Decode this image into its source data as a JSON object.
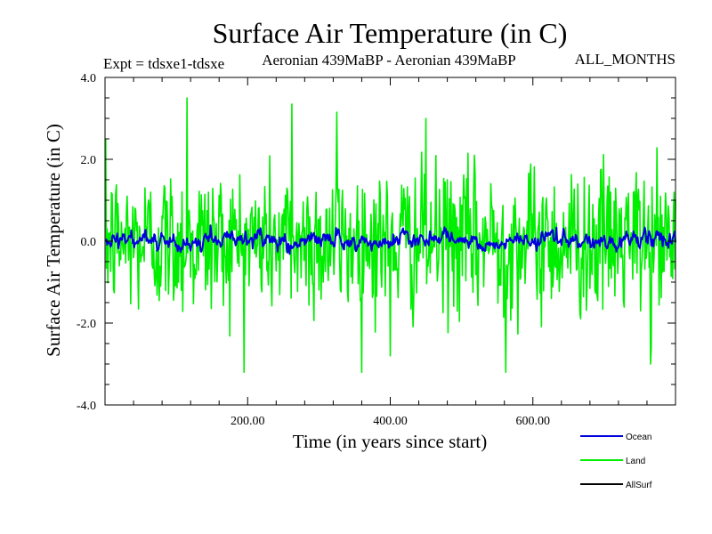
{
  "chart_data": {
    "type": "line",
    "title": "Surface Air Temperature (in C)",
    "subtitle_left": "Expt = tdsxe1-tdsxe",
    "subtitle_center": "Aeronian 439MaBP - Aeronian 439MaBP",
    "subtitle_right": "ALL_MONTHS",
    "xlabel": "Time (in years since start)",
    "ylabel": "Surface Air Temperature (in C)",
    "xlim": [
      0,
      800
    ],
    "ylim": [
      -4.0,
      4.0
    ],
    "xticks": [
      200,
      400,
      600
    ],
    "xtick_labels": [
      "200.00",
      "400.00",
      "600.00"
    ],
    "yticks": [
      -4.0,
      -2.0,
      0.0,
      2.0,
      4.0
    ],
    "ytick_labels": [
      "-4.0",
      "-2.0",
      "0.0",
      "2.0",
      "4.0"
    ],
    "legend_position": "bottom-right",
    "series": [
      {
        "name": "Land",
        "color": "#00ee00",
        "n_points": 800,
        "x_start": 1,
        "x_step": 1,
        "approx_std": 0.9,
        "min": -3.2,
        "max": 3.5,
        "peaks": [
          {
            "x": 115,
            "y": 3.5
          },
          {
            "x": 262,
            "y": 3.35
          },
          {
            "x": 325,
            "y": 3.15
          },
          {
            "x": 450,
            "y": 3.0
          }
        ],
        "troughs": [
          {
            "x": 562,
            "y": -3.2
          },
          {
            "x": 765,
            "y": -3.0
          },
          {
            "x": 400,
            "y": -2.8
          }
        ]
      },
      {
        "name": "Ocean",
        "color": "#0000dd",
        "n_points": 800,
        "x_start": 1,
        "x_step": 1,
        "approx_std": 0.15,
        "min": -0.5,
        "max": 0.4
      },
      {
        "name": "AllSurf",
        "color": "#000000",
        "n_points": 0
      }
    ]
  }
}
